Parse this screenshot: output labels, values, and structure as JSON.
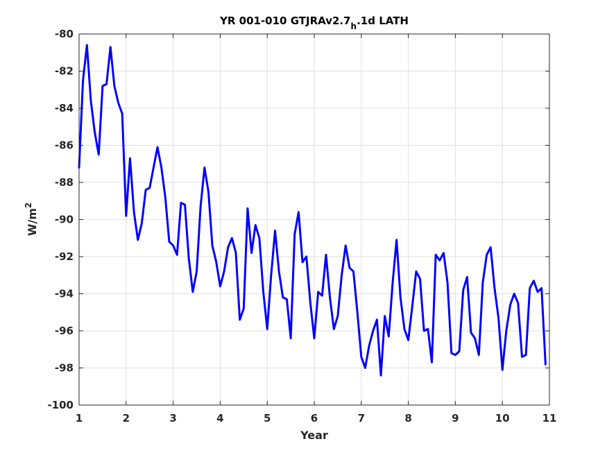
{
  "chart_data": {
    "type": "line",
    "title_main": "YR 001-010 GTJRAv2.7",
    "title_sub": "h",
    "title_tail": ".1d LATH",
    "xlabel": "Year",
    "ylabel_base": "W/m",
    "ylabel_exp": "2",
    "xlim": [
      1,
      11
    ],
    "ylim": [
      -100,
      -80
    ],
    "xticks": [
      1,
      2,
      3,
      4,
      5,
      6,
      7,
      8,
      9,
      10,
      11
    ],
    "yticks": [
      -100,
      -98,
      -96,
      -94,
      -92,
      -90,
      -88,
      -86,
      -84,
      -82,
      -80
    ],
    "grid": true,
    "line_color": "#0000ff",
    "series": [
      {
        "x": [
          1.0,
          1.083,
          1.167,
          1.25,
          1.333,
          1.417,
          1.5,
          1.583,
          1.667,
          1.75,
          1.833,
          1.917,
          2.0,
          2.083,
          2.167,
          2.25,
          2.333,
          2.417,
          2.5,
          2.583,
          2.667,
          2.75,
          2.833,
          2.917,
          3.0,
          3.083,
          3.167,
          3.25,
          3.333,
          3.417,
          3.5,
          3.583,
          3.667,
          3.75,
          3.833,
          3.917,
          4.0,
          4.083,
          4.167,
          4.25,
          4.333,
          4.417,
          4.5,
          4.583,
          4.667,
          4.75,
          4.833,
          4.917,
          5.0,
          5.083,
          5.167,
          5.25,
          5.333,
          5.417,
          5.5,
          5.583,
          5.667,
          5.75,
          5.833,
          5.917,
          6.0,
          6.083,
          6.167,
          6.25,
          6.333,
          6.417,
          6.5,
          6.583,
          6.667,
          6.75,
          6.833,
          6.917,
          7.0,
          7.083,
          7.167,
          7.25,
          7.333,
          7.417,
          7.5,
          7.583,
          7.667,
          7.75,
          7.833,
          7.917,
          8.0,
          8.083,
          8.167,
          8.25,
          8.333,
          8.417,
          8.5,
          8.583,
          8.667,
          8.75,
          8.833,
          8.917,
          9.0,
          9.083,
          9.167,
          9.25,
          9.333,
          9.417,
          9.5,
          9.583,
          9.667,
          9.75,
          9.833,
          9.917,
          10.0,
          10.083,
          10.167,
          10.25,
          10.333,
          10.417,
          10.5,
          10.583,
          10.667,
          10.75,
          10.833,
          10.917
        ],
        "y": [
          -87.2,
          -82.5,
          -80.6,
          -83.6,
          -85.3,
          -86.5,
          -82.8,
          -82.7,
          -80.7,
          -82.8,
          -83.7,
          -84.3,
          -89.8,
          -86.7,
          -89.6,
          -91.1,
          -90.2,
          -88.4,
          -88.3,
          -87.2,
          -86.1,
          -87.2,
          -88.8,
          -91.2,
          -91.4,
          -91.9,
          -89.1,
          -89.2,
          -92.1,
          -93.9,
          -92.8,
          -89.3,
          -87.2,
          -88.5,
          -91.4,
          -92.3,
          -93.6,
          -92.8,
          -91.5,
          -91.0,
          -91.8,
          -95.4,
          -94.8,
          -89.4,
          -91.8,
          -90.3,
          -91.0,
          -93.9,
          -95.9,
          -93.0,
          -90.6,
          -92.8,
          -94.2,
          -94.3,
          -96.4,
          -90.8,
          -89.6,
          -92.3,
          -92.0,
          -94.5,
          -96.4,
          -93.9,
          -94.1,
          -91.9,
          -94.2,
          -95.9,
          -95.2,
          -93.0,
          -91.4,
          -92.6,
          -92.8,
          -95.0,
          -97.4,
          -98.0,
          -96.8,
          -96.0,
          -95.4,
          -98.4,
          -95.2,
          -96.3,
          -93.4,
          -91.1,
          -94.2,
          -95.9,
          -96.5,
          -94.7,
          -92.8,
          -93.2,
          -96.0,
          -95.9,
          -97.7,
          -91.9,
          -92.2,
          -91.8,
          -93.4,
          -97.2,
          -97.3,
          -97.1,
          -93.8,
          -93.1,
          -96.1,
          -96.4,
          -97.3,
          -93.4,
          -91.9,
          -91.5,
          -93.7,
          -95.3,
          -98.1,
          -96.0,
          -94.6,
          -94.0,
          -94.5,
          -97.4,
          -97.3,
          -93.7,
          -93.3,
          -93.9,
          -93.7,
          -97.8
        ]
      }
    ]
  }
}
